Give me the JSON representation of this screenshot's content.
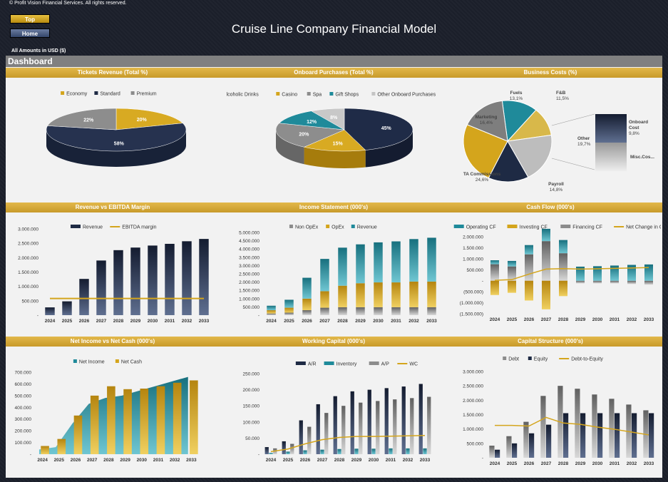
{
  "header": {
    "copyright": "© Profit Vision Financial Services. All rights reserved.",
    "top_button": "Top",
    "home_button": "Home",
    "title": "Cruise Line Company Financial Model",
    "amounts": "All Amounts in  USD ($)",
    "dashboard": "Dashboard"
  },
  "panel_titles": {
    "tickets": "Tickets Revenue (Total %)",
    "onboard": "Onboard Purchases (Total %)",
    "business": "Business Costs (%)",
    "revenue": "Revenue vs EBITDA Margin",
    "income": "Income Statement (000's)",
    "cashflow": "Cash Flow (000's)",
    "netincome": "Net Income vs Net Cash (000's)",
    "wc": "Working Capital (000's)",
    "capital": "Capital Structure (000's)"
  },
  "colors": {
    "navy": "#1e2a44",
    "gold": "#d4a51c",
    "teal": "#1f8a9a",
    "gray": "#8c8c8c",
    "lightgray": "#c4c4c4"
  },
  "chart_data": [
    {
      "id": "tickets",
      "type": "pie",
      "title": "Tickets Revenue (Total %)",
      "legend": [
        "Economy",
        "Standard",
        "Premium"
      ],
      "values": [
        20,
        58,
        22
      ],
      "labels": [
        "20%",
        "58%",
        "22%"
      ]
    },
    {
      "id": "onboard",
      "type": "pie",
      "title": "Onboard Purchases (Total %)",
      "legend": [
        "Alcoholic Drinks",
        "Casino",
        "Spa",
        "Gift Shops",
        "Other Onboard Purchases"
      ],
      "values": [
        45,
        15,
        20,
        12,
        8
      ],
      "labels": [
        "45%",
        "15%",
        "20%",
        "12%",
        "8%"
      ]
    },
    {
      "id": "business",
      "type": "pie",
      "title": "Business Costs (%)",
      "slices": [
        {
          "name": "Fuels",
          "value": "13,1%"
        },
        {
          "name": "F&B",
          "value": "11,5%"
        },
        {
          "name": "Other",
          "value": "19,7%"
        },
        {
          "name": "Payroll",
          "value": "14,8%"
        },
        {
          "name": "TA Commissions",
          "value": "24,6%"
        },
        {
          "name": "Marketing",
          "value": "16,4%"
        }
      ],
      "values": [
        13.1,
        11.5,
        19.7,
        14.8,
        24.6,
        16.4
      ],
      "breakout": [
        {
          "name": "Onboard Cost",
          "value": "9,8%"
        },
        {
          "name": "Misc.Cos...",
          "value": ""
        }
      ]
    },
    {
      "id": "revenue",
      "type": "bar",
      "title": "Revenue vs EBITDA Margin",
      "legend": [
        "Revenue",
        "EBITDA margin"
      ],
      "categories": [
        "2024",
        "2025",
        "2026",
        "2027",
        "2028",
        "2029",
        "2030",
        "2031",
        "2032",
        "2033"
      ],
      "yticks": [
        "3.000.000",
        "2.500.000",
        "2.000.000",
        "1.500.000",
        "1.000.000",
        "500.000",
        "-"
      ],
      "ylim": [
        0,
        3000000
      ],
      "revenue": [
        270000,
        480000,
        1260000,
        1900000,
        2260000,
        2350000,
        2420000,
        2480000,
        2570000,
        2650000
      ],
      "ebitda_line": [
        580000,
        580000,
        580000,
        580000,
        580000,
        580000,
        580000,
        580000,
        580000,
        580000
      ]
    },
    {
      "id": "income",
      "type": "bar",
      "title": "Income Statement (000's)",
      "legend": [
        "Non OpEx",
        "OpEx",
        "Revenue"
      ],
      "categories": [
        "2024",
        "2025",
        "2026",
        "2027",
        "2028",
        "2029",
        "2030",
        "2031",
        "2032",
        "2033"
      ],
      "yticks": [
        "5.000.000",
        "4.500.000",
        "4.000.000",
        "3.500.000",
        "3.000.000",
        "2.500.000",
        "2.000.000",
        "1.500.000",
        "1.000.000",
        "500.000",
        "-"
      ],
      "ylim": [
        0,
        5000000
      ],
      "series": [
        {
          "name": "Non OpEx",
          "values": [
            100000,
            150000,
            300000,
            450000,
            480000,
            480000,
            480000,
            480000,
            480000,
            480000
          ]
        },
        {
          "name": "OpEx",
          "values": [
            200000,
            300000,
            700000,
            1000000,
            1300000,
            1450000,
            1500000,
            1500000,
            1550000,
            1550000
          ]
        },
        {
          "name": "Revenue",
          "values": [
            270000,
            480000,
            1260000,
            1950000,
            2300000,
            2350000,
            2420000,
            2480000,
            2570000,
            2650000
          ]
        }
      ]
    },
    {
      "id": "cashflow",
      "type": "bar",
      "title": "Cash Flow (000's)",
      "legend": [
        "Operating CF",
        "Investing CF",
        "Financing CF",
        "Net Change in Cash"
      ],
      "categories": [
        "2024",
        "2025",
        "2026",
        "2027",
        "2028",
        "2029",
        "2030",
        "2031",
        "2032",
        "2033"
      ],
      "yticks": [
        "2.000.000",
        "1.500.000",
        "1.000.000",
        "500.000",
        "-",
        "(500.000)",
        "(1.000.000)",
        "(1.500.000)"
      ],
      "ylim": [
        -1500000,
        2000000
      ],
      "series": [
        {
          "name": "Operating CF",
          "values": [
            180000,
            250000,
            420000,
            560000,
            600000,
            640000,
            660000,
            690000,
            720000,
            740000
          ]
        },
        {
          "name": "Investing CF",
          "values": [
            -650000,
            -550000,
            -900000,
            -1300000,
            -700000,
            0,
            0,
            0,
            0,
            0
          ]
        },
        {
          "name": "Financing CF",
          "values": [
            750000,
            650000,
            1200000,
            1800000,
            1250000,
            -120000,
            -120000,
            -120000,
            -150000,
            -180000
          ]
        },
        {
          "name": "Net Change in Cash",
          "values": [
            20000,
            50000,
            300000,
            530000,
            550000,
            530000,
            540000,
            560000,
            580000,
            600000
          ]
        }
      ]
    },
    {
      "id": "netincome",
      "type": "bar",
      "title": "Net Income vs Net Cash (000's)",
      "legend": [
        "Net Income",
        "Net Cash"
      ],
      "categories": [
        "2024",
        "2025",
        "2026",
        "2027",
        "2028",
        "2029",
        "2030",
        "2031",
        "2032",
        "2033"
      ],
      "yticks": [
        "700.000",
        "600.000",
        "500.000",
        "400.000",
        "300.000",
        "200.000",
        "100.000",
        "-"
      ],
      "ylim": [
        0,
        700000
      ],
      "series": [
        {
          "name": "Net Income",
          "values": [
            40000,
            60000,
            260000,
            430000,
            480000,
            500000,
            540000,
            580000,
            620000,
            660000
          ]
        },
        {
          "name": "Net Cash",
          "values": [
            70000,
            130000,
            330000,
            500000,
            580000,
            555000,
            560000,
            580000,
            610000,
            630000
          ]
        }
      ]
    },
    {
      "id": "wc",
      "type": "bar",
      "title": "Working Capital (000's)",
      "legend": [
        "A/R",
        "Inventory",
        "A/P",
        "WC"
      ],
      "categories": [
        "2024",
        "2025",
        "2026",
        "2027",
        "2028",
        "2029",
        "2030",
        "2031",
        "2032",
        "2033"
      ],
      "yticks": [
        "250.000",
        "200.000",
        "150.000",
        "100.000",
        "50.000",
        "-"
      ],
      "ylim": [
        0,
        250000
      ],
      "series": [
        {
          "name": "A/R",
          "values": [
            22000,
            40000,
            105000,
            155000,
            180000,
            195000,
            200000,
            205000,
            210000,
            218000
          ]
        },
        {
          "name": "Inventory",
          "values": [
            4000,
            8000,
            12000,
            14000,
            16000,
            17000,
            17000,
            18000,
            18000,
            18000
          ]
        },
        {
          "name": "A/P",
          "values": [
            18000,
            32000,
            85000,
            128000,
            150000,
            160000,
            165000,
            170000,
            174000,
            178000
          ]
        },
        {
          "name": "WC",
          "values": [
            8000,
            16000,
            32000,
            45000,
            52000,
            55000,
            55000,
            56000,
            57000,
            58000
          ]
        }
      ]
    },
    {
      "id": "capital",
      "type": "bar",
      "title": "Capital Structure (000's)",
      "legend": [
        "Debt",
        "Equity",
        "Debt-to-Equity"
      ],
      "categories": [
        "2024",
        "2025",
        "2026",
        "2027",
        "2028",
        "2029",
        "2030",
        "2031",
        "2032",
        "2033"
      ],
      "yticks": [
        "3.000.000",
        "2.500.000",
        "2.000.000",
        "1.500.000",
        "1.000.000",
        "500.000",
        "-"
      ],
      "ylim": [
        0,
        3000000
      ],
      "series": [
        {
          "name": "Debt",
          "values": [
            420000,
            750000,
            1250000,
            2150000,
            2500000,
            2400000,
            2200000,
            2050000,
            1850000,
            1650000
          ]
        },
        {
          "name": "Equity",
          "values": [
            280000,
            500000,
            850000,
            1150000,
            1550000,
            1550000,
            1550000,
            1550000,
            1550000,
            1550000
          ]
        },
        {
          "name": "Debt-to-Equity",
          "values": [
            1.5,
            1.5,
            1.47,
            1.87,
            1.61,
            1.55,
            1.42,
            1.32,
            1.19,
            1.06
          ]
        }
      ]
    }
  ]
}
